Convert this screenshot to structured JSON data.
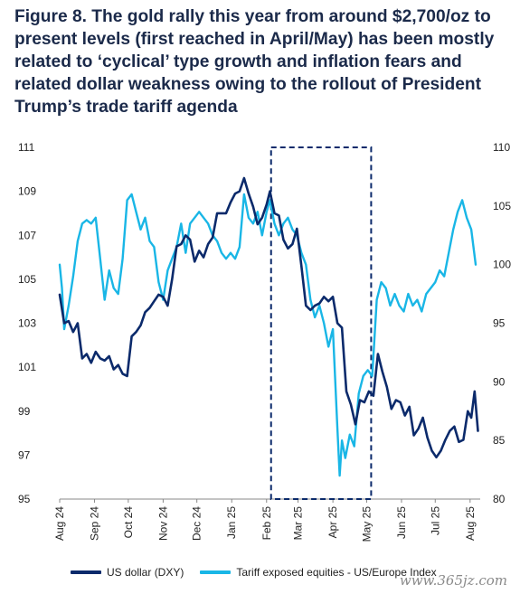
{
  "title": "Figure 8. The gold rally this year from around $2,700/oz to present levels (first reached in April/May) has been mostly related to ‘cyclical’ type growth and inflation fears and related dollar weakness owing to the rollout of President Trump’s trade tariff agenda",
  "watermark": "www.365jz.com",
  "colors": {
    "dxy": "#0b2a6b",
    "equities": "#19b6e6",
    "box": "#0b2a6b"
  },
  "chart_data": {
    "type": "line",
    "x_axis": {
      "type": "date",
      "range": [
        "2024-08-01",
        "2025-08-10"
      ],
      "ticks": [
        {
          "label": "Aug 24",
          "date": "2024-08-01"
        },
        {
          "label": "Sep 24",
          "date": "2024-09-01"
        },
        {
          "label": "Oct 24",
          "date": "2024-10-01"
        },
        {
          "label": "Nov 24",
          "date": "2024-11-01"
        },
        {
          "label": "Dec 24",
          "date": "2024-12-01"
        },
        {
          "label": "Jan 25",
          "date": "2025-01-01"
        },
        {
          "label": "Feb 25",
          "date": "2025-02-01"
        },
        {
          "label": "Mar 25",
          "date": "2025-03-01"
        },
        {
          "label": "Apr 25",
          "date": "2025-04-01"
        },
        {
          "label": "May 25",
          "date": "2025-05-01"
        },
        {
          "label": "Jun 25",
          "date": "2025-06-01"
        },
        {
          "label": "Jul 25",
          "date": "2025-07-01"
        },
        {
          "label": "Aug 25",
          "date": "2025-08-01"
        }
      ]
    },
    "y_left": {
      "range": [
        95,
        111
      ],
      "ticks": [
        95,
        97,
        99,
        101,
        103,
        105,
        107,
        109,
        111
      ]
    },
    "y_right": {
      "range": [
        80,
        110
      ],
      "ticks": [
        80,
        85,
        90,
        95,
        100,
        105,
        110
      ]
    },
    "highlight_box": {
      "x0": "2025-02-05",
      "x1": "2025-05-05",
      "y0": 95,
      "y1": 111,
      "axis": "left",
      "style": "dashed"
    },
    "series": [
      {
        "name": "US dollar (DXY)",
        "axis": "left",
        "points": [
          [
            "2024-08-01",
            104.3
          ],
          [
            "2024-08-05",
            103.0
          ],
          [
            "2024-08-09",
            103.1
          ],
          [
            "2024-08-13",
            102.6
          ],
          [
            "2024-08-17",
            103.0
          ],
          [
            "2024-08-21",
            101.4
          ],
          [
            "2024-08-25",
            101.6
          ],
          [
            "2024-08-29",
            101.2
          ],
          [
            "2024-09-02",
            101.7
          ],
          [
            "2024-09-06",
            101.4
          ],
          [
            "2024-09-10",
            101.3
          ],
          [
            "2024-09-14",
            101.5
          ],
          [
            "2024-09-18",
            100.9
          ],
          [
            "2024-09-22",
            101.1
          ],
          [
            "2024-09-26",
            100.7
          ],
          [
            "2024-09-30",
            100.6
          ],
          [
            "2024-10-04",
            102.4
          ],
          [
            "2024-10-08",
            102.6
          ],
          [
            "2024-10-12",
            102.9
          ],
          [
            "2024-10-16",
            103.5
          ],
          [
            "2024-10-20",
            103.7
          ],
          [
            "2024-10-24",
            104.0
          ],
          [
            "2024-10-28",
            104.3
          ],
          [
            "2024-11-01",
            104.2
          ],
          [
            "2024-11-05",
            103.8
          ],
          [
            "2024-11-09",
            105.0
          ],
          [
            "2024-11-13",
            106.5
          ],
          [
            "2024-11-17",
            106.6
          ],
          [
            "2024-11-21",
            107.0
          ],
          [
            "2024-11-25",
            106.8
          ],
          [
            "2024-11-29",
            105.8
          ],
          [
            "2024-12-03",
            106.3
          ],
          [
            "2024-12-07",
            106.0
          ],
          [
            "2024-12-11",
            106.6
          ],
          [
            "2024-12-15",
            106.9
          ],
          [
            "2024-12-19",
            108.0
          ],
          [
            "2024-12-23",
            108.0
          ],
          [
            "2024-12-27",
            108.0
          ],
          [
            "2024-12-31",
            108.5
          ],
          [
            "2025-01-04",
            108.9
          ],
          [
            "2025-01-08",
            109.0
          ],
          [
            "2025-01-12",
            109.6
          ],
          [
            "2025-01-16",
            108.9
          ],
          [
            "2025-01-20",
            108.3
          ],
          [
            "2025-01-24",
            107.5
          ],
          [
            "2025-01-28",
            107.8
          ],
          [
            "2025-02-01",
            108.4
          ],
          [
            "2025-02-04",
            109.0
          ],
          [
            "2025-02-08",
            108.0
          ],
          [
            "2025-02-12",
            107.9
          ],
          [
            "2025-02-16",
            106.8
          ],
          [
            "2025-02-20",
            106.4
          ],
          [
            "2025-02-24",
            106.6
          ],
          [
            "2025-02-28",
            107.3
          ],
          [
            "2025-03-04",
            105.6
          ],
          [
            "2025-03-08",
            103.8
          ],
          [
            "2025-03-12",
            103.6
          ],
          [
            "2025-03-16",
            103.8
          ],
          [
            "2025-03-20",
            103.9
          ],
          [
            "2025-03-24",
            104.2
          ],
          [
            "2025-03-28",
            104.0
          ],
          [
            "2025-04-01",
            104.2
          ],
          [
            "2025-04-05",
            103.0
          ],
          [
            "2025-04-09",
            102.8
          ],
          [
            "2025-04-13",
            99.9
          ],
          [
            "2025-04-17",
            99.3
          ],
          [
            "2025-04-21",
            98.4
          ],
          [
            "2025-04-25",
            99.5
          ],
          [
            "2025-04-29",
            99.4
          ],
          [
            "2025-05-03",
            99.9
          ],
          [
            "2025-05-07",
            99.7
          ],
          [
            "2025-05-11",
            101.6
          ],
          [
            "2025-05-15",
            100.8
          ],
          [
            "2025-05-19",
            100.1
          ],
          [
            "2025-05-23",
            99.1
          ],
          [
            "2025-05-27",
            99.5
          ],
          [
            "2025-05-31",
            99.4
          ],
          [
            "2025-06-04",
            98.8
          ],
          [
            "2025-06-08",
            99.2
          ],
          [
            "2025-06-12",
            97.9
          ],
          [
            "2025-06-16",
            98.2
          ],
          [
            "2025-06-20",
            98.7
          ],
          [
            "2025-06-24",
            97.8
          ],
          [
            "2025-06-28",
            97.2
          ],
          [
            "2025-07-02",
            96.9
          ],
          [
            "2025-07-06",
            97.2
          ],
          [
            "2025-07-10",
            97.7
          ],
          [
            "2025-07-14",
            98.1
          ],
          [
            "2025-07-18",
            98.3
          ],
          [
            "2025-07-22",
            97.6
          ],
          [
            "2025-07-26",
            97.7
          ],
          [
            "2025-07-30",
            99.0
          ],
          [
            "2025-08-02",
            98.7
          ],
          [
            "2025-08-05",
            99.9
          ],
          [
            "2025-08-08",
            98.1
          ]
        ]
      },
      {
        "name": "Tariff exposed equities - US/Europe Index",
        "axis": "right",
        "points": [
          [
            "2024-08-01",
            100.0
          ],
          [
            "2024-08-03",
            98.0
          ],
          [
            "2024-08-05",
            94.5
          ],
          [
            "2024-08-09",
            96.5
          ],
          [
            "2024-08-13",
            99.0
          ],
          [
            "2024-08-17",
            102.0
          ],
          [
            "2024-08-21",
            103.5
          ],
          [
            "2024-08-25",
            103.8
          ],
          [
            "2024-08-29",
            103.5
          ],
          [
            "2024-09-02",
            104.0
          ],
          [
            "2024-09-06",
            100.5
          ],
          [
            "2024-09-10",
            97.0
          ],
          [
            "2024-09-14",
            99.5
          ],
          [
            "2024-09-18",
            98.0
          ],
          [
            "2024-09-22",
            97.5
          ],
          [
            "2024-09-26",
            100.5
          ],
          [
            "2024-09-30",
            105.5
          ],
          [
            "2024-10-04",
            106.0
          ],
          [
            "2024-10-08",
            104.5
          ],
          [
            "2024-10-12",
            103.0
          ],
          [
            "2024-10-16",
            104.0
          ],
          [
            "2024-10-20",
            102.0
          ],
          [
            "2024-10-24",
            101.5
          ],
          [
            "2024-10-28",
            98.5
          ],
          [
            "2024-11-01",
            97.0
          ],
          [
            "2024-11-05",
            99.5
          ],
          [
            "2024-11-09",
            100.5
          ],
          [
            "2024-11-13",
            101.5
          ],
          [
            "2024-11-17",
            103.5
          ],
          [
            "2024-11-21",
            101.0
          ],
          [
            "2024-11-25",
            103.5
          ],
          [
            "2024-11-29",
            104.0
          ],
          [
            "2024-12-03",
            104.5
          ],
          [
            "2024-12-07",
            104.0
          ],
          [
            "2024-12-11",
            103.5
          ],
          [
            "2024-12-15",
            102.5
          ],
          [
            "2024-12-19",
            102.0
          ],
          [
            "2024-12-23",
            101.0
          ],
          [
            "2024-12-27",
            100.5
          ],
          [
            "2024-12-31",
            101.0
          ],
          [
            "2025-01-04",
            100.5
          ],
          [
            "2025-01-08",
            101.5
          ],
          [
            "2025-01-12",
            106.0
          ],
          [
            "2025-01-16",
            104.0
          ],
          [
            "2025-01-20",
            103.5
          ],
          [
            "2025-01-24",
            104.5
          ],
          [
            "2025-01-28",
            102.5
          ],
          [
            "2025-02-01",
            104.5
          ],
          [
            "2025-02-04",
            105.5
          ],
          [
            "2025-02-08",
            103.5
          ],
          [
            "2025-02-12",
            102.5
          ],
          [
            "2025-02-16",
            103.5
          ],
          [
            "2025-02-20",
            104.0
          ],
          [
            "2025-02-24",
            103.0
          ],
          [
            "2025-02-28",
            102.5
          ],
          [
            "2025-03-04",
            101.0
          ],
          [
            "2025-03-08",
            100.0
          ],
          [
            "2025-03-12",
            97.0
          ],
          [
            "2025-03-16",
            95.5
          ],
          [
            "2025-03-20",
            96.5
          ],
          [
            "2025-03-24",
            95.0
          ],
          [
            "2025-03-28",
            93.0
          ],
          [
            "2025-04-01",
            94.5
          ],
          [
            "2025-04-05",
            86.0
          ],
          [
            "2025-04-07",
            82.0
          ],
          [
            "2025-04-09",
            85.0
          ],
          [
            "2025-04-12",
            83.5
          ],
          [
            "2025-04-16",
            85.5
          ],
          [
            "2025-04-20",
            84.5
          ],
          [
            "2025-04-24",
            89.0
          ],
          [
            "2025-04-28",
            90.5
          ],
          [
            "2025-05-02",
            91.0
          ],
          [
            "2025-05-06",
            90.5
          ],
          [
            "2025-05-10",
            97.0
          ],
          [
            "2025-05-14",
            98.5
          ],
          [
            "2025-05-18",
            98.0
          ],
          [
            "2025-05-22",
            96.5
          ],
          [
            "2025-05-26",
            97.5
          ],
          [
            "2025-05-30",
            96.5
          ],
          [
            "2025-06-03",
            96.0
          ],
          [
            "2025-06-07",
            97.5
          ],
          [
            "2025-06-11",
            96.5
          ],
          [
            "2025-06-15",
            97.0
          ],
          [
            "2025-06-19",
            96.0
          ],
          [
            "2025-06-23",
            97.5
          ],
          [
            "2025-06-27",
            98.0
          ],
          [
            "2025-07-01",
            98.5
          ],
          [
            "2025-07-05",
            99.5
          ],
          [
            "2025-07-09",
            99.0
          ],
          [
            "2025-07-13",
            101.0
          ],
          [
            "2025-07-17",
            103.0
          ],
          [
            "2025-07-21",
            104.5
          ],
          [
            "2025-07-25",
            105.5
          ],
          [
            "2025-07-29",
            104.0
          ],
          [
            "2025-08-02",
            103.0
          ],
          [
            "2025-08-06",
            100.0
          ]
        ]
      }
    ]
  }
}
